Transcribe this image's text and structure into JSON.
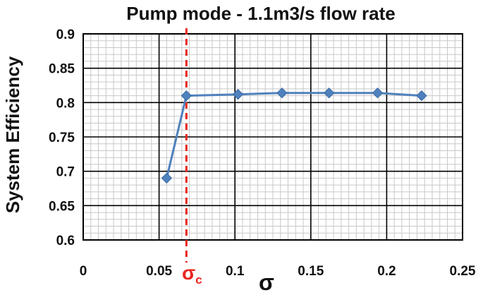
{
  "chart_data": {
    "type": "line",
    "title": "Pump mode - 1.1m3/s flow rate",
    "xlabel": "σ",
    "ylabel": "System Efficiency",
    "xlim": [
      0,
      0.25
    ],
    "ylim": [
      0.6,
      0.9
    ],
    "xticks": [
      "0",
      "0.05",
      "0.1",
      "0.15",
      "0.2",
      "0.25"
    ],
    "yticks": [
      "0.6",
      "0.65",
      "0.7",
      "0.75",
      "0.8",
      "0.85",
      "0.9"
    ],
    "grid": true,
    "series": [
      {
        "x": [
          0.055,
          0.068,
          0.102,
          0.131,
          0.162,
          0.194,
          0.223
        ],
        "y": [
          0.69,
          0.81,
          0.812,
          0.814,
          0.814,
          0.814,
          0.81
        ],
        "color": "#4f81bd",
        "marker": "diamond"
      }
    ],
    "reference_line": {
      "x": 0.068,
      "label_main": "σ",
      "label_sub": "c",
      "color": "#e8251f",
      "style": "dashed"
    }
  }
}
